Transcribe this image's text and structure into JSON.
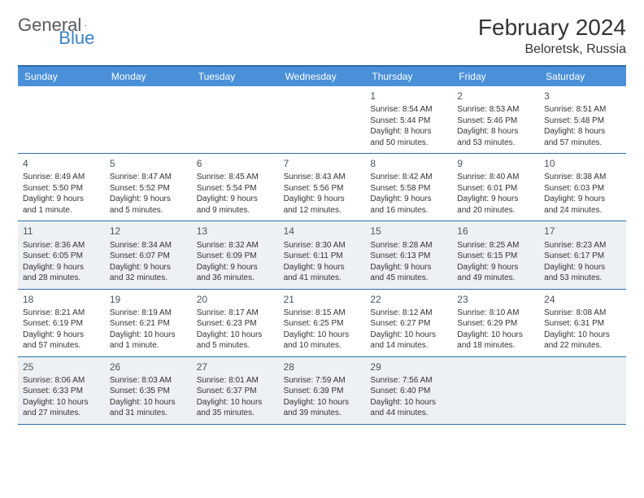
{
  "logo": {
    "text1": "General",
    "text2": "Blue"
  },
  "title": "February 2024",
  "subtitle": "Beloretsk, Russia",
  "colors": {
    "header_bg": "#4a90d9",
    "border": "#2b6da8",
    "alt_bg": "#eef1f3",
    "text": "#333333",
    "logo_gray": "#555a5e",
    "logo_blue": "#3b82c4"
  },
  "day_headers": [
    "Sunday",
    "Monday",
    "Tuesday",
    "Wednesday",
    "Thursday",
    "Friday",
    "Saturday"
  ],
  "weeks": [
    [
      {
        "day": "",
        "lines": []
      },
      {
        "day": "",
        "lines": []
      },
      {
        "day": "",
        "lines": []
      },
      {
        "day": "",
        "lines": []
      },
      {
        "day": "1",
        "lines": [
          "Sunrise: 8:54 AM",
          "Sunset: 5:44 PM",
          "Daylight: 8 hours",
          "and 50 minutes."
        ]
      },
      {
        "day": "2",
        "lines": [
          "Sunrise: 8:53 AM",
          "Sunset: 5:46 PM",
          "Daylight: 8 hours",
          "and 53 minutes."
        ]
      },
      {
        "day": "3",
        "lines": [
          "Sunrise: 8:51 AM",
          "Sunset: 5:48 PM",
          "Daylight: 8 hours",
          "and 57 minutes."
        ]
      }
    ],
    [
      {
        "day": "4",
        "lines": [
          "Sunrise: 8:49 AM",
          "Sunset: 5:50 PM",
          "Daylight: 9 hours",
          "and 1 minute."
        ]
      },
      {
        "day": "5",
        "lines": [
          "Sunrise: 8:47 AM",
          "Sunset: 5:52 PM",
          "Daylight: 9 hours",
          "and 5 minutes."
        ]
      },
      {
        "day": "6",
        "lines": [
          "Sunrise: 8:45 AM",
          "Sunset: 5:54 PM",
          "Daylight: 9 hours",
          "and 9 minutes."
        ]
      },
      {
        "day": "7",
        "lines": [
          "Sunrise: 8:43 AM",
          "Sunset: 5:56 PM",
          "Daylight: 9 hours",
          "and 12 minutes."
        ]
      },
      {
        "day": "8",
        "lines": [
          "Sunrise: 8:42 AM",
          "Sunset: 5:58 PM",
          "Daylight: 9 hours",
          "and 16 minutes."
        ]
      },
      {
        "day": "9",
        "lines": [
          "Sunrise: 8:40 AM",
          "Sunset: 6:01 PM",
          "Daylight: 9 hours",
          "and 20 minutes."
        ]
      },
      {
        "day": "10",
        "lines": [
          "Sunrise: 8:38 AM",
          "Sunset: 6:03 PM",
          "Daylight: 9 hours",
          "and 24 minutes."
        ]
      }
    ],
    [
      {
        "day": "11",
        "lines": [
          "Sunrise: 8:36 AM",
          "Sunset: 6:05 PM",
          "Daylight: 9 hours",
          "and 28 minutes."
        ]
      },
      {
        "day": "12",
        "lines": [
          "Sunrise: 8:34 AM",
          "Sunset: 6:07 PM",
          "Daylight: 9 hours",
          "and 32 minutes."
        ]
      },
      {
        "day": "13",
        "lines": [
          "Sunrise: 8:32 AM",
          "Sunset: 6:09 PM",
          "Daylight: 9 hours",
          "and 36 minutes."
        ]
      },
      {
        "day": "14",
        "lines": [
          "Sunrise: 8:30 AM",
          "Sunset: 6:11 PM",
          "Daylight: 9 hours",
          "and 41 minutes."
        ]
      },
      {
        "day": "15",
        "lines": [
          "Sunrise: 8:28 AM",
          "Sunset: 6:13 PM",
          "Daylight: 9 hours",
          "and 45 minutes."
        ]
      },
      {
        "day": "16",
        "lines": [
          "Sunrise: 8:25 AM",
          "Sunset: 6:15 PM",
          "Daylight: 9 hours",
          "and 49 minutes."
        ]
      },
      {
        "day": "17",
        "lines": [
          "Sunrise: 8:23 AM",
          "Sunset: 6:17 PM",
          "Daylight: 9 hours",
          "and 53 minutes."
        ]
      }
    ],
    [
      {
        "day": "18",
        "lines": [
          "Sunrise: 8:21 AM",
          "Sunset: 6:19 PM",
          "Daylight: 9 hours",
          "and 57 minutes."
        ]
      },
      {
        "day": "19",
        "lines": [
          "Sunrise: 8:19 AM",
          "Sunset: 6:21 PM",
          "Daylight: 10 hours",
          "and 1 minute."
        ]
      },
      {
        "day": "20",
        "lines": [
          "Sunrise: 8:17 AM",
          "Sunset: 6:23 PM",
          "Daylight: 10 hours",
          "and 5 minutes."
        ]
      },
      {
        "day": "21",
        "lines": [
          "Sunrise: 8:15 AM",
          "Sunset: 6:25 PM",
          "Daylight: 10 hours",
          "and 10 minutes."
        ]
      },
      {
        "day": "22",
        "lines": [
          "Sunrise: 8:12 AM",
          "Sunset: 6:27 PM",
          "Daylight: 10 hours",
          "and 14 minutes."
        ]
      },
      {
        "day": "23",
        "lines": [
          "Sunrise: 8:10 AM",
          "Sunset: 6:29 PM",
          "Daylight: 10 hours",
          "and 18 minutes."
        ]
      },
      {
        "day": "24",
        "lines": [
          "Sunrise: 8:08 AM",
          "Sunset: 6:31 PM",
          "Daylight: 10 hours",
          "and 22 minutes."
        ]
      }
    ],
    [
      {
        "day": "25",
        "lines": [
          "Sunrise: 8:06 AM",
          "Sunset: 6:33 PM",
          "Daylight: 10 hours",
          "and 27 minutes."
        ]
      },
      {
        "day": "26",
        "lines": [
          "Sunrise: 8:03 AM",
          "Sunset: 6:35 PM",
          "Daylight: 10 hours",
          "and 31 minutes."
        ]
      },
      {
        "day": "27",
        "lines": [
          "Sunrise: 8:01 AM",
          "Sunset: 6:37 PM",
          "Daylight: 10 hours",
          "and 35 minutes."
        ]
      },
      {
        "day": "28",
        "lines": [
          "Sunrise: 7:59 AM",
          "Sunset: 6:39 PM",
          "Daylight: 10 hours",
          "and 39 minutes."
        ]
      },
      {
        "day": "29",
        "lines": [
          "Sunrise: 7:56 AM",
          "Sunset: 6:40 PM",
          "Daylight: 10 hours",
          "and 44 minutes."
        ]
      },
      {
        "day": "",
        "lines": []
      },
      {
        "day": "",
        "lines": []
      }
    ]
  ]
}
